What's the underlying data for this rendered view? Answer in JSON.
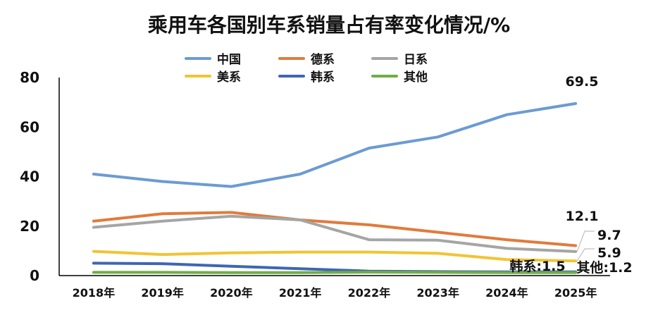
{
  "title": "乘用车各国别车系销量占有率变化情况/%",
  "chart_data": {
    "type": "line",
    "title": "乘用车各国别车系销量占有率变化情况/%",
    "x": [
      "2018年",
      "2019年",
      "2020年",
      "2021年",
      "2022年",
      "2023年",
      "2024年",
      "2025年"
    ],
    "ylim": [
      0,
      80
    ],
    "yticks": [
      "80",
      "60",
      "40",
      "20",
      "0"
    ],
    "grid": false,
    "legend_position": "top",
    "series": [
      {
        "name": "中国",
        "color": "#6b9bd2",
        "values": [
          41.0,
          38.0,
          36.0,
          41.0,
          51.5,
          56.0,
          65.0,
          69.5
        ],
        "end_label": "69.5"
      },
      {
        "name": "德系",
        "color": "#e07b3c",
        "values": [
          22.0,
          25.0,
          25.5,
          22.5,
          20.5,
          17.5,
          14.5,
          12.1
        ],
        "end_label": "12.1"
      },
      {
        "name": "日系",
        "color": "#a5a5a5",
        "values": [
          19.5,
          22.0,
          24.0,
          22.5,
          14.5,
          14.3,
          11.0,
          9.7
        ],
        "end_label": "9.7"
      },
      {
        "name": "美系",
        "color": "#f2c433",
        "values": [
          9.8,
          8.5,
          9.2,
          9.5,
          9.5,
          9.0,
          6.5,
          5.9
        ],
        "end_label": "5.9"
      },
      {
        "name": "韩系",
        "color": "#3e66b3",
        "values": [
          5.0,
          4.8,
          3.8,
          2.8,
          1.8,
          1.6,
          1.5,
          1.5
        ],
        "end_label": "韩系:1.5"
      },
      {
        "name": "其他",
        "color": "#70ad47",
        "values": [
          1.3,
          1.3,
          1.2,
          1.2,
          1.4,
          1.3,
          1.2,
          1.2
        ],
        "end_label": "其他:1.2"
      }
    ]
  }
}
